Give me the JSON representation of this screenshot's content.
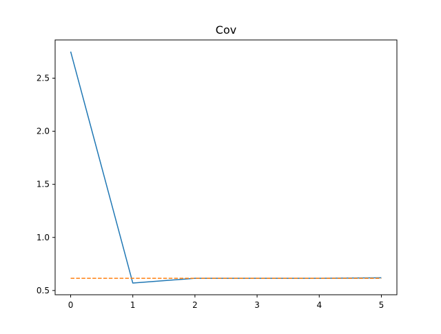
{
  "chart_data": {
    "type": "line",
    "title": "Cov",
    "xlabel": "",
    "ylabel": "",
    "xlim": [
      -0.25,
      5.25
    ],
    "ylim": [
      0.46,
      2.86
    ],
    "x_ticks": [
      0,
      1,
      2,
      3,
      4,
      5
    ],
    "x_tick_labels": [
      "0",
      "1",
      "2",
      "3",
      "4",
      "5"
    ],
    "y_ticks": [
      0.5,
      1.0,
      1.5,
      2.0,
      2.5
    ],
    "y_tick_labels": [
      "0.5",
      "1.0",
      "1.5",
      "2.0",
      "2.5"
    ],
    "grid": false,
    "legend": "none",
    "series": [
      {
        "x": [
          0,
          1,
          2,
          3,
          4,
          5
        ],
        "values": [
          2.75,
          0.57,
          0.615,
          0.615,
          0.615,
          0.62
        ],
        "color": "#1f77b4",
        "style": "solid"
      },
      {
        "x": [
          0,
          5
        ],
        "values": [
          0.615,
          0.615
        ],
        "color": "#ff7f0e",
        "style": "dashed"
      }
    ]
  }
}
